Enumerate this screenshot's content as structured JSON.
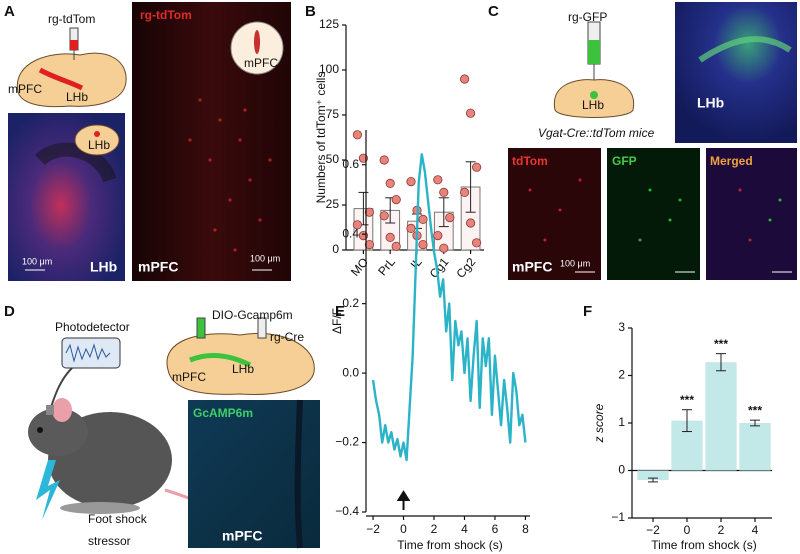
{
  "figure": {
    "panel_labels": [
      "A",
      "B",
      "C",
      "D",
      "E",
      "F"
    ],
    "a": {
      "injection": "rg-tdTom",
      "region1": "mPFC",
      "region2": "LHb",
      "inset_lhb": "LHb",
      "scale1": "100 μm",
      "image1_label": "LHb",
      "image2_title": "rg-tdTom",
      "inset_mpfc": "mPFC",
      "scale2": "100 μm",
      "image2_label": "mPFC"
    },
    "c": {
      "injection": "rg-GFP",
      "region": "LHb",
      "mouse_line": "Vgat-Cre::tdTom mice",
      "image_label": "LHb",
      "channels": [
        "tdTom",
        "GFP",
        "Merged"
      ],
      "scale": "100 μm",
      "region_label": "mPFC"
    },
    "d": {
      "detector": "Photodetector",
      "virus1": "DIO-Gcamp6m",
      "virus2": "rg-Cre",
      "region1": "mPFC",
      "region2": "LHb",
      "image_title": "GcAMP6m",
      "image_label": "mPFC",
      "stimulus": [
        "Foot shock",
        "stressor"
      ]
    }
  },
  "chart_data": [
    {
      "type": "bar",
      "ylabel": "Numbers of tdTom⁺ cells",
      "categories": [
        "MO",
        "PrL",
        "IL",
        "Cg1",
        "Cg2"
      ],
      "values": [
        23,
        22,
        16,
        21,
        35
      ],
      "errors": [
        9,
        7,
        4,
        8,
        14
      ],
      "points": [
        [
          64,
          51,
          21,
          14,
          8,
          3
        ],
        [
          50,
          37,
          28,
          19,
          7,
          2
        ],
        [
          38,
          22,
          17,
          12,
          8,
          3
        ],
        [
          39,
          32,
          18,
          8,
          1
        ],
        [
          95,
          76,
          46,
          32,
          15,
          4
        ]
      ],
      "color": "#e8837c",
      "bar_color": "#fdf3f2",
      "ylim": [
        0,
        125
      ],
      "yticks": [
        0,
        25,
        50,
        75,
        100,
        125
      ]
    },
    {
      "type": "line",
      "ylabel": "ΔF/F",
      "xlabel": "Time from shock (s)",
      "x": [
        -2.0,
        -1.8,
        -1.6,
        -1.4,
        -1.2,
        -1.0,
        -0.8,
        -0.6,
        -0.4,
        -0.2,
        0.0,
        0.2,
        0.4,
        0.6,
        0.8,
        1.0,
        1.2,
        1.4,
        1.6,
        1.8,
        2.0,
        2.2,
        2.4,
        2.6,
        2.8,
        3.0,
        3.2,
        3.4,
        3.6,
        3.8,
        4.0,
        4.2,
        4.4,
        4.6,
        4.8,
        5.0,
        5.2,
        5.4,
        5.6,
        5.8,
        6.0,
        6.2,
        6.4,
        6.6,
        6.8,
        7.0,
        7.2,
        7.4,
        7.6,
        7.8,
        8.0
      ],
      "values": [
        -0.02,
        -0.08,
        -0.12,
        -0.2,
        -0.15,
        -0.2,
        -0.17,
        -0.22,
        -0.19,
        -0.24,
        -0.2,
        -0.25,
        -0.1,
        0.05,
        0.3,
        0.55,
        0.63,
        0.58,
        0.5,
        0.42,
        0.35,
        0.3,
        0.22,
        0.27,
        0.12,
        0.2,
        -0.02,
        0.15,
        0.08,
        0.12,
        0.0,
        0.1,
        -0.08,
        0.05,
        0.15,
        -0.1,
        0.1,
        0.02,
        0.1,
        -0.12,
        0.05,
        -0.05,
        -0.15,
        -0.02,
        -0.1,
        -0.2,
        0.0,
        -0.05,
        -0.15,
        -0.12,
        -0.2
      ],
      "color": "#2bb3c8",
      "xlim": [
        -2.2,
        8.3
      ],
      "xticks": [
        {
          "value": -2,
          "label": "−2"
        },
        0,
        2,
        4,
        6,
        8
      ],
      "ylim": [
        -0.4,
        0.7
      ],
      "yticks": [
        {
          "value": -0.4,
          "label": "−0.4"
        },
        {
          "value": -0.2,
          "label": "−0.2"
        },
        {
          "value": 0,
          "label": "0.0"
        },
        0.2,
        0.4,
        0.6
      ]
    },
    {
      "type": "bar",
      "ylabel": "z score",
      "xlabel": "Time from shock (s)",
      "categories": [
        "−2",
        "0",
        "2",
        "4"
      ],
      "values": [
        -0.2,
        1.05,
        2.28,
        1.0
      ],
      "errors": [
        0.04,
        0.23,
        0.18,
        0.06
      ],
      "annotations": [
        null,
        "***",
        "***",
        "***"
      ],
      "bar_color": "#c2e8e8",
      "ylim": [
        -1,
        3
      ],
      "yticks": [
        {
          "value": -1,
          "label": "−1"
        },
        0,
        1,
        2,
        3
      ]
    }
  ]
}
